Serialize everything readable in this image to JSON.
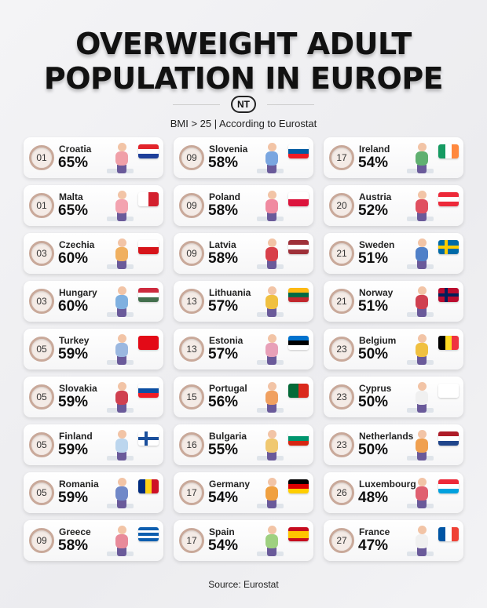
{
  "title_line1": "OVERWEIGHT ADULT",
  "title_line2": "POPULATION IN EUROPE",
  "logo": "NT",
  "subtitle": "BMI > 25 | According to Eurostat",
  "source": "Source: Eurostat",
  "columns": [
    [
      {
        "rank": "01",
        "country": "Croatia",
        "value": "65%",
        "shirt": "#f0a0a8",
        "flag": {
          "type": "h",
          "colors": [
            "#e2242b",
            "#ffffff",
            "#1f3f9a"
          ]
        }
      },
      {
        "rank": "01",
        "country": "Malta",
        "value": "65%",
        "shirt": "#f3a3b0",
        "flag": {
          "type": "v",
          "colors": [
            "#ffffff",
            "#d3202e"
          ]
        }
      },
      {
        "rank": "03",
        "country": "Czechia",
        "value": "60%",
        "shirt": "#f0b060",
        "flag": {
          "type": "h",
          "colors": [
            "#ffffff",
            "#d7141a"
          ]
        }
      },
      {
        "rank": "03",
        "country": "Hungary",
        "value": "60%",
        "shirt": "#7fb0e0",
        "flag": {
          "type": "h",
          "colors": [
            "#cd2a3e",
            "#ffffff",
            "#436f4d"
          ]
        }
      },
      {
        "rank": "05",
        "country": "Turkey",
        "value": "59%",
        "shirt": "#9bb8e0",
        "flag": {
          "type": "v",
          "colors": [
            "#e30a17"
          ]
        }
      },
      {
        "rank": "05",
        "country": "Slovakia",
        "value": "59%",
        "shirt": "#d04050",
        "flag": {
          "type": "h",
          "colors": [
            "#ffffff",
            "#0b4ea2",
            "#ee1c25"
          ]
        }
      },
      {
        "rank": "05",
        "country": "Finland",
        "value": "59%",
        "shirt": "#bcd6ee",
        "flag": {
          "type": "cross",
          "colors": [
            "#ffffff",
            "#1a4f9c"
          ]
        }
      },
      {
        "rank": "05",
        "country": "Romania",
        "value": "59%",
        "shirt": "#7088c8",
        "flag": {
          "type": "v",
          "colors": [
            "#002b7f",
            "#fcd116",
            "#ce1126"
          ]
        }
      },
      {
        "rank": "09",
        "country": "Greece",
        "value": "58%",
        "shirt": "#e88a9a",
        "flag": {
          "type": "h",
          "colors": [
            "#0d5eaf",
            "#ffffff",
            "#0d5eaf",
            "#ffffff",
            "#0d5eaf"
          ]
        }
      }
    ],
    [
      {
        "rank": "09",
        "country": "Slovenia",
        "value": "58%",
        "shirt": "#7aa6e0",
        "flag": {
          "type": "h",
          "colors": [
            "#ffffff",
            "#005da4",
            "#ed1c24"
          ]
        }
      },
      {
        "rank": "09",
        "country": "Poland",
        "value": "58%",
        "shirt": "#f08aa0",
        "flag": {
          "type": "h",
          "colors": [
            "#ffffff",
            "#dc143c"
          ]
        }
      },
      {
        "rank": "09",
        "country": "Latvia",
        "value": "58%",
        "shirt": "#d8404a",
        "flag": {
          "type": "h",
          "colors": [
            "#9e3039",
            "#ffffff",
            "#9e3039"
          ]
        }
      },
      {
        "rank": "13",
        "country": "Lithuania",
        "value": "57%",
        "shirt": "#f0c040",
        "flag": {
          "type": "h",
          "colors": [
            "#fdb913",
            "#006a44",
            "#c1272d"
          ]
        }
      },
      {
        "rank": "13",
        "country": "Estonia",
        "value": "57%",
        "shirt": "#e8a0b8",
        "flag": {
          "type": "h",
          "colors": [
            "#0072ce",
            "#000000",
            "#ffffff"
          ]
        }
      },
      {
        "rank": "15",
        "country": "Portugal",
        "value": "56%",
        "shirt": "#f0a060",
        "flag": {
          "type": "v",
          "colors": [
            "#046a38",
            "#da291c"
          ]
        }
      },
      {
        "rank": "16",
        "country": "Bulgaria",
        "value": "55%",
        "shirt": "#f0c870",
        "flag": {
          "type": "h",
          "colors": [
            "#ffffff",
            "#00966e",
            "#d62612"
          ]
        }
      },
      {
        "rank": "17",
        "country": "Germany",
        "value": "54%",
        "shirt": "#f0a040",
        "flag": {
          "type": "h",
          "colors": [
            "#000000",
            "#dd0000",
            "#ffce00"
          ]
        }
      },
      {
        "rank": "17",
        "country": "Spain",
        "value": "54%",
        "shirt": "#9ed080",
        "flag": {
          "type": "h",
          "colors": [
            "#c60b1e",
            "#ffc400",
            "#ffc400",
            "#c60b1e"
          ]
        }
      }
    ],
    [
      {
        "rank": "17",
        "country": "Ireland",
        "value": "54%",
        "shirt": "#60b070",
        "flag": {
          "type": "v",
          "colors": [
            "#169b62",
            "#ffffff",
            "#ff883e"
          ]
        }
      },
      {
        "rank": "20",
        "country": "Austria",
        "value": "52%",
        "shirt": "#e05060",
        "flag": {
          "type": "h",
          "colors": [
            "#ed2939",
            "#ffffff",
            "#ed2939"
          ]
        }
      },
      {
        "rank": "21",
        "country": "Sweden",
        "value": "51%",
        "shirt": "#5080c8",
        "flag": {
          "type": "cross",
          "colors": [
            "#006aa7",
            "#fecc00"
          ]
        }
      },
      {
        "rank": "21",
        "country": "Norway",
        "value": "51%",
        "shirt": "#d04050",
        "flag": {
          "type": "cross",
          "colors": [
            "#ba0c2f",
            "#00205b"
          ]
        }
      },
      {
        "rank": "23",
        "country": "Belgium",
        "value": "50%",
        "shirt": "#f0c040",
        "flag": {
          "type": "v",
          "colors": [
            "#000000",
            "#fdda24",
            "#ef3340"
          ]
        }
      },
      {
        "rank": "23",
        "country": "Cyprus",
        "value": "50%",
        "shirt": "#f0f0f0",
        "flag": {
          "type": "v",
          "colors": [
            "#ffffff"
          ]
        }
      },
      {
        "rank": "23",
        "country": "Netherlands",
        "value": "50%",
        "shirt": "#f0a050",
        "flag": {
          "type": "h",
          "colors": [
            "#ae1c28",
            "#ffffff",
            "#21468b"
          ]
        }
      },
      {
        "rank": "26",
        "country": "Luxembourg",
        "value": "48%",
        "shirt": "#e06070",
        "flag": {
          "type": "h",
          "colors": [
            "#ed2939",
            "#ffffff",
            "#00a1de"
          ]
        }
      },
      {
        "rank": "27",
        "country": "France",
        "value": "47%",
        "shirt": "#f0f0f0",
        "flag": {
          "type": "v",
          "colors": [
            "#0055a4",
            "#ffffff",
            "#ef4135"
          ]
        }
      }
    ]
  ]
}
